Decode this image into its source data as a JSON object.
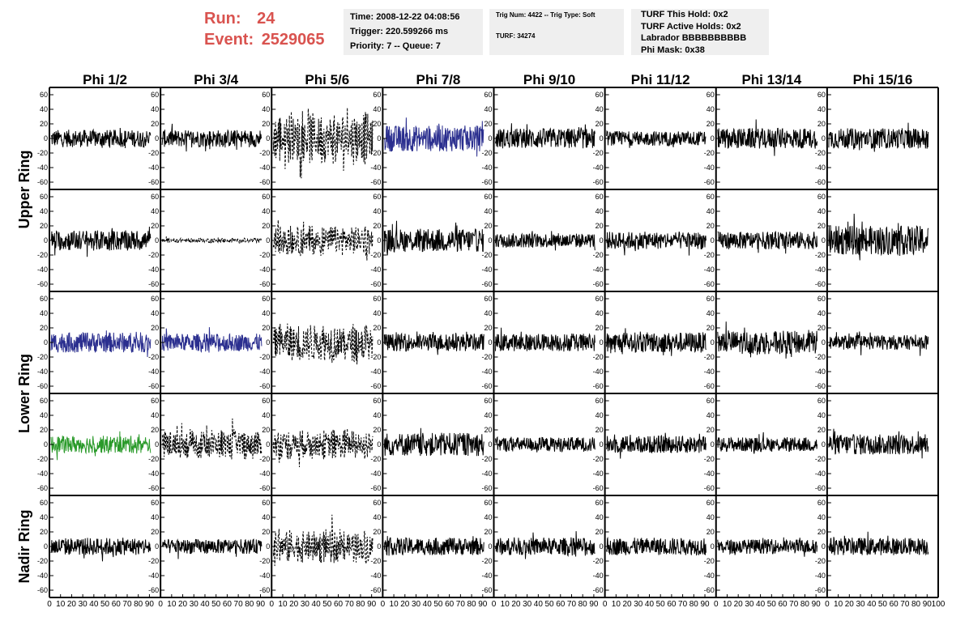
{
  "header": {
    "run_label": "Run:",
    "run_value": "24",
    "event_label": "Event:",
    "event_value": "2529065"
  },
  "info_boxes": {
    "time": "Time: 2008-12-22 04:08:56",
    "trigger": "Trigger: 220.599266 ms",
    "priority": "Priority: 7 -- Queue: 7",
    "trig_num": "Trig Num: 4422 -- Trig Type: Soft",
    "turf": "TURF: 34274",
    "turf_hold": "TURF This Hold: 0x2",
    "turf_active": "TURF Active Holds: 0x2",
    "labrador": "Labrador BBBBBBBBBB",
    "phi_mask": "Phi Mask: 0x38"
  },
  "chart_data": {
    "type": "line",
    "columns": [
      "Phi 1/2",
      "Phi 3/4",
      "Phi 5/6",
      "Phi 7/8",
      "Phi 9/10",
      "Phi 11/12",
      "Phi 13/14",
      "Phi 15/16"
    ],
    "rings": [
      {
        "label": "Upper Ring",
        "rows": [
          0,
          1
        ]
      },
      {
        "label": "Lower Ring",
        "rows": [
          2,
          3
        ]
      },
      {
        "label": "Nadir Ring",
        "rows": [
          4
        ]
      }
    ],
    "ylim": [
      -70,
      70
    ],
    "yticks": [
      -60,
      -40,
      -20,
      0,
      20,
      40,
      60
    ],
    "ytick_labels": [
      "-60",
      "-40",
      "-20",
      "0",
      "20",
      "40",
      "60"
    ],
    "xlim": [
      0,
      100
    ],
    "xtick_labels": [
      "0",
      "10",
      "20",
      "30",
      "40",
      "50",
      "60",
      "70",
      "80",
      "90",
      "100"
    ],
    "colors": {
      "normal": "#000000",
      "triggered": "#2b2f8f",
      "l3": "#2a9a2a",
      "frame": "#000000"
    },
    "samples_per_trace": 260,
    "panels": [
      [
        {
          "amp": 12,
          "style": "solid",
          "color": "normal"
        },
        {
          "amp": 12,
          "style": "solid",
          "color": "normal"
        },
        {
          "amp": 34,
          "style": "dashed",
          "color": "normal"
        },
        {
          "amp": 18,
          "style": "solid",
          "color": "triggered"
        },
        {
          "amp": 14,
          "style": "solid",
          "color": "normal"
        },
        {
          "amp": 10,
          "style": "solid",
          "color": "normal"
        },
        {
          "amp": 14,
          "style": "solid",
          "color": "normal"
        },
        {
          "amp": 14,
          "style": "solid",
          "color": "normal"
        }
      ],
      [
        {
          "amp": 14,
          "style": "solid",
          "color": "normal"
        },
        {
          "amp": 3,
          "style": "dashed",
          "color": "normal"
        },
        {
          "amp": 20,
          "style": "dashed",
          "color": "normal"
        },
        {
          "amp": 16,
          "style": "solid",
          "color": "normal"
        },
        {
          "amp": 10,
          "style": "solid",
          "color": "normal"
        },
        {
          "amp": 12,
          "style": "solid",
          "color": "normal"
        },
        {
          "amp": 12,
          "style": "solid",
          "color": "normal"
        },
        {
          "amp": 20,
          "style": "solid",
          "color": "normal"
        }
      ],
      [
        {
          "amp": 14,
          "style": "solid",
          "color": "triggered"
        },
        {
          "amp": 12,
          "style": "solid",
          "color": "triggered"
        },
        {
          "amp": 26,
          "style": "dashed",
          "color": "normal"
        },
        {
          "amp": 12,
          "style": "solid",
          "color": "normal"
        },
        {
          "amp": 12,
          "style": "solid",
          "color": "normal"
        },
        {
          "amp": 14,
          "style": "solid",
          "color": "normal"
        },
        {
          "amp": 16,
          "style": "solid",
          "color": "normal"
        },
        {
          "amp": 10,
          "style": "solid",
          "color": "normal"
        }
      ],
      [
        {
          "amp": 12,
          "style": "solid",
          "color": "l3"
        },
        {
          "amp": 20,
          "style": "dashed",
          "color": "normal"
        },
        {
          "amp": 20,
          "style": "dashed",
          "color": "normal"
        },
        {
          "amp": 16,
          "style": "solid",
          "color": "normal"
        },
        {
          "amp": 10,
          "style": "solid",
          "color": "normal"
        },
        {
          "amp": 12,
          "style": "solid",
          "color": "normal"
        },
        {
          "amp": 10,
          "style": "solid",
          "color": "normal"
        },
        {
          "amp": 14,
          "style": "solid",
          "color": "normal"
        }
      ],
      [
        {
          "amp": 12,
          "style": "solid",
          "color": "normal"
        },
        {
          "amp": 10,
          "style": "solid",
          "color": "normal"
        },
        {
          "amp": 22,
          "style": "dashed",
          "color": "normal"
        },
        {
          "amp": 12,
          "style": "solid",
          "color": "normal"
        },
        {
          "amp": 12,
          "style": "solid",
          "color": "normal"
        },
        {
          "amp": 12,
          "style": "solid",
          "color": "normal"
        },
        {
          "amp": 10,
          "style": "solid",
          "color": "normal"
        },
        {
          "amp": 12,
          "style": "solid",
          "color": "normal"
        }
      ]
    ]
  }
}
